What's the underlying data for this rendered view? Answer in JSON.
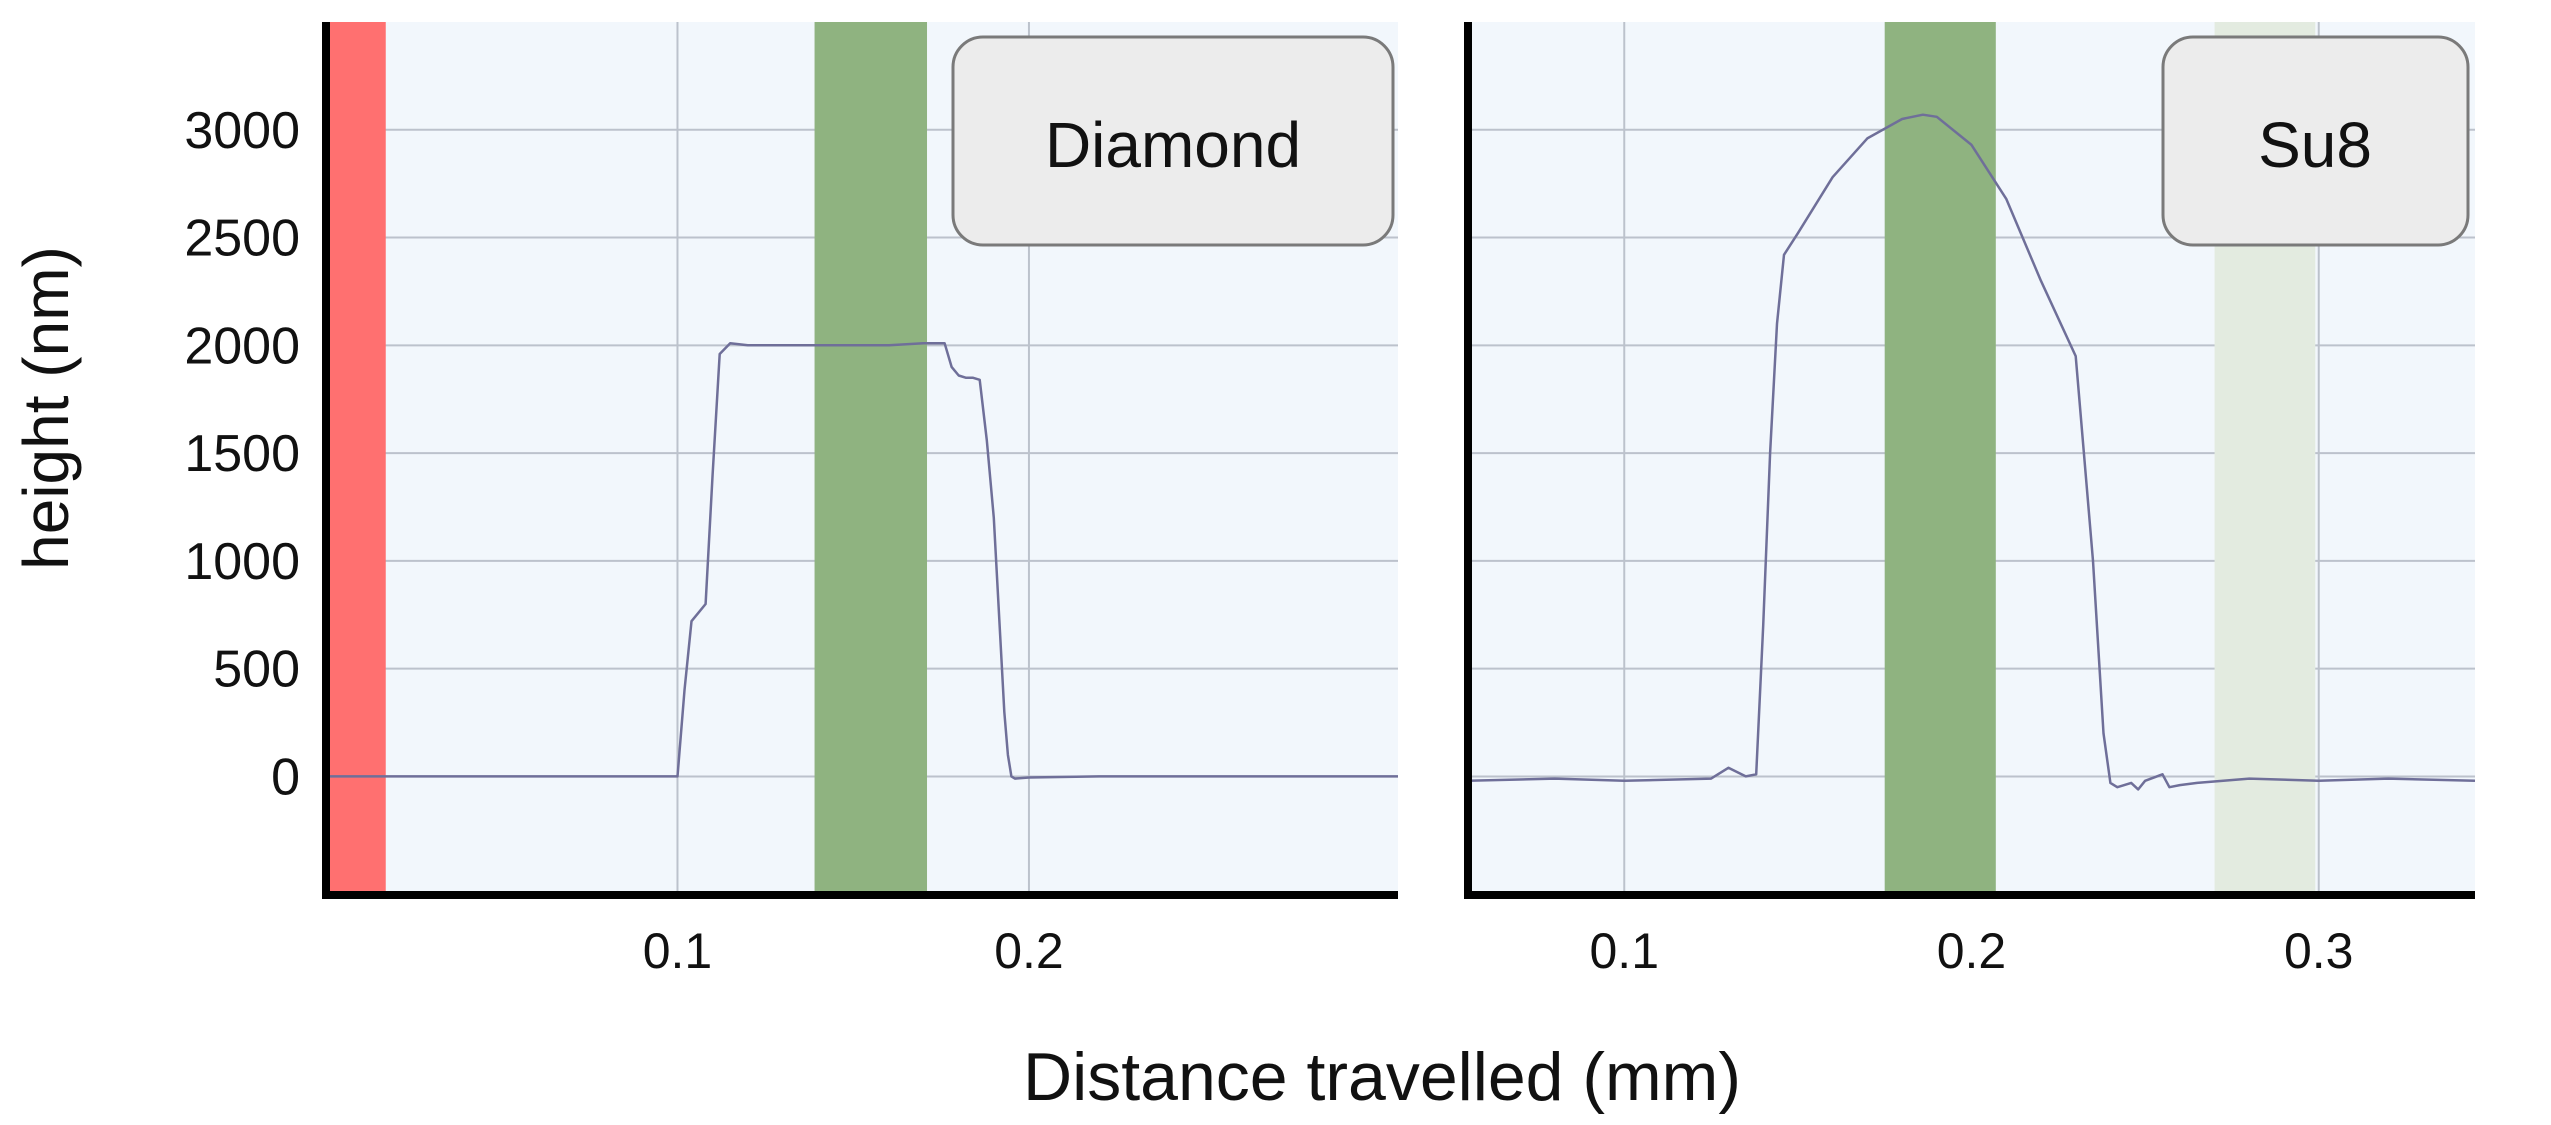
{
  "figure": {
    "ylabel": "height (nm)",
    "xlabel": "Distance travelled (mm)",
    "colors": {
      "plot_bg": "#f2f7fc",
      "grid": "#bcc2cc",
      "axis": "#000000",
      "trace": "#6f6f99",
      "red_band": "#ff7070",
      "green_band": "#8fb380",
      "light_green_band": "#e3ebe0",
      "label_box_fill": "#ececec",
      "label_box_stroke": "#7a7a7a"
    }
  },
  "chart_data": [
    {
      "type": "line",
      "label": "Diamond",
      "xlim": [
        0.0,
        0.305
      ],
      "ylim": [
        -550,
        3500
      ],
      "x_ticks": [
        0.1,
        0.2
      ],
      "x_tick_labels": [
        "0.1",
        "0.2"
      ],
      "y_ticks": [
        0,
        500,
        1000,
        1500,
        2000,
        2500,
        3000
      ],
      "y_tick_labels": [
        "0",
        "500",
        "1000",
        "1500",
        "2000",
        "2500",
        "3000"
      ],
      "grid": true,
      "bands": [
        {
          "x0": 0.0,
          "x1": 0.017,
          "color": "red"
        },
        {
          "x0": 0.139,
          "x1": 0.171,
          "color": "green"
        }
      ],
      "series": [
        {
          "x": [
            0.0,
            0.04,
            0.08,
            0.1,
            0.102,
            0.104,
            0.106,
            0.108,
            0.11,
            0.112,
            0.115,
            0.12,
            0.13,
            0.14,
            0.15,
            0.16,
            0.17,
            0.176,
            0.178,
            0.18,
            0.182,
            0.184,
            0.186,
            0.188,
            0.19,
            0.191,
            0.192,
            0.193,
            0.194,
            0.195,
            0.196,
            0.2,
            0.22,
            0.25,
            0.28,
            0.305
          ],
          "y": [
            0,
            0,
            0,
            0,
            400,
            720,
            760,
            800,
            1400,
            1960,
            2010,
            2000,
            2000,
            2000,
            2000,
            2000,
            2010,
            2010,
            1900,
            1860,
            1850,
            1850,
            1840,
            1560,
            1200,
            900,
            600,
            300,
            100,
            0,
            -10,
            -5,
            0,
            0,
            0,
            0
          ]
        }
      ]
    },
    {
      "type": "line",
      "label": "Su8",
      "xlim": [
        0.055,
        0.345
      ],
      "ylim": [
        -550,
        3500
      ],
      "x_ticks": [
        0.1,
        0.2,
        0.3
      ],
      "x_tick_labels": [
        "0.1",
        "0.2",
        "0.3"
      ],
      "y_ticks": [
        0,
        500,
        1000,
        1500,
        2000,
        2500,
        3000
      ],
      "grid": true,
      "bands": [
        {
          "x0": 0.175,
          "x1": 0.207,
          "color": "green"
        },
        {
          "x0": 0.27,
          "x1": 0.299,
          "color": "light-green"
        }
      ],
      "series": [
        {
          "x": [
            0.055,
            0.08,
            0.1,
            0.125,
            0.13,
            0.135,
            0.138,
            0.14,
            0.142,
            0.144,
            0.146,
            0.15,
            0.16,
            0.17,
            0.18,
            0.186,
            0.19,
            0.2,
            0.21,
            0.22,
            0.23,
            0.235,
            0.238,
            0.24,
            0.242,
            0.244,
            0.246,
            0.248,
            0.25,
            0.255,
            0.257,
            0.26,
            0.265,
            0.28,
            0.3,
            0.32,
            0.345
          ],
          "y": [
            -20,
            -10,
            -20,
            -10,
            40,
            0,
            10,
            700,
            1500,
            2100,
            2420,
            2520,
            2780,
            2960,
            3050,
            3070,
            3060,
            2930,
            2680,
            2300,
            1950,
            1000,
            200,
            -30,
            -50,
            -40,
            -30,
            -60,
            -20,
            10,
            -50,
            -40,
            -30,
            -10,
            -20,
            -10,
            -20
          ]
        }
      ]
    }
  ]
}
